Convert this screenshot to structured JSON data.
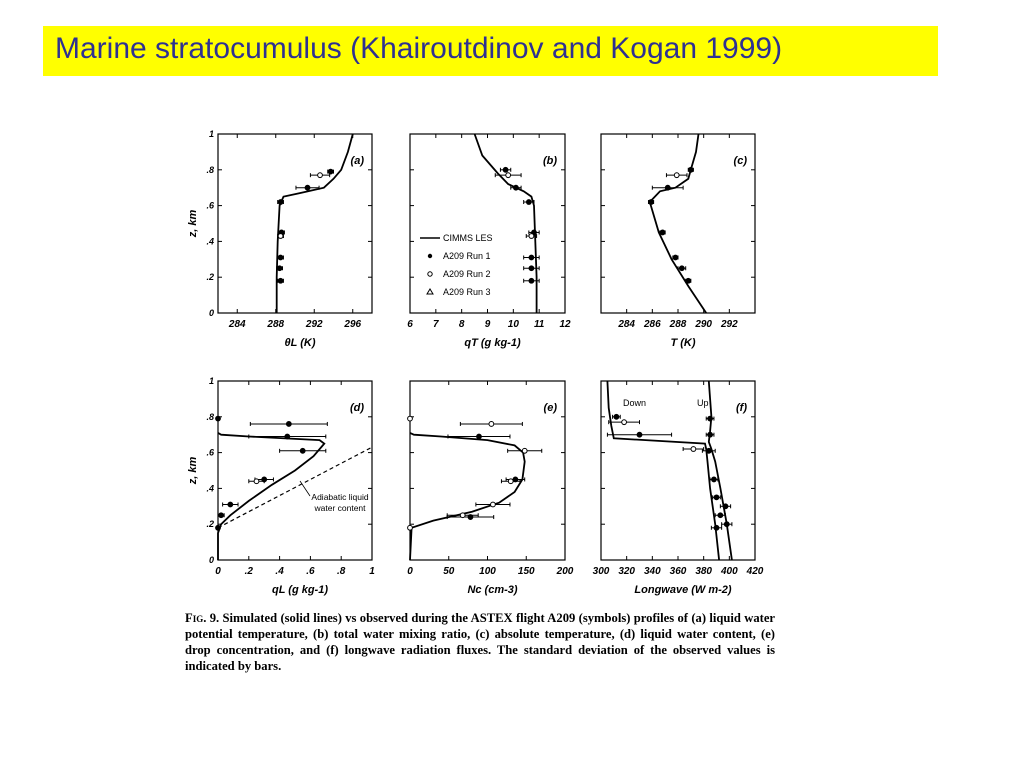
{
  "slide": {
    "title": "Marine stratocumulus (Khairoutdinov and Kogan 1999)",
    "title_bg_color": "#ffff00",
    "title_text_color": "#2e3192"
  },
  "caption": {
    "label": "Fig. 9.",
    "text": "Simulated (solid lines) vs observed during the ASTEX flight A209 (symbols) profiles of (a) liquid water potential temperature, (b) total water mixing ratio, (c) absolute temperature, (d) liquid water content, (e) drop concentration, and (f) longwave radiation fluxes. The standard deviation of the observed values is indicated by bars."
  },
  "legend": {
    "entries": [
      {
        "label": "CIMMS LES",
        "symbol": "line"
      },
      {
        "label": "A209  Run 1",
        "symbol": "filled-circle"
      },
      {
        "label": "A209  Run 2",
        "symbol": "open-circle"
      },
      {
        "label": "A209  Run 3",
        "symbol": "triangle"
      }
    ]
  },
  "chart_data": [
    {
      "panel": "(a)",
      "type": "line",
      "xlabel": "θL (K)",
      "ylabel": "z, km",
      "xlim": [
        282,
        298
      ],
      "ylim": [
        0,
        1
      ],
      "xticks": [
        284,
        288,
        292,
        296
      ],
      "yticks": [
        0,
        0.2,
        0.4,
        0.6,
        0.8,
        1
      ],
      "series": [
        {
          "kind": "line",
          "x": [
            288.1,
            288.1,
            288.2,
            288.4,
            288.8,
            290.5,
            293.0,
            294.0,
            294.8,
            295.5,
            296.0
          ],
          "y": [
            0,
            0.2,
            0.4,
            0.6,
            0.65,
            0.67,
            0.7,
            0.75,
            0.8,
            0.9,
            1.0
          ]
        },
        {
          "kind": "obs",
          "points": [
            {
              "x": 293.7,
              "y": 0.79,
              "err": 0.3,
              "sym": "filled"
            },
            {
              "x": 292.6,
              "y": 0.77,
              "err": 1.0,
              "sym": "open"
            },
            {
              "x": 291.3,
              "y": 0.7,
              "err": 1.2,
              "sym": "filled"
            },
            {
              "x": 288.5,
              "y": 0.62,
              "err": 0.3,
              "sym": "filled"
            },
            {
              "x": 288.6,
              "y": 0.45,
              "err": 0.3,
              "sym": "filled"
            },
            {
              "x": 288.5,
              "y": 0.43,
              "err": 0.3,
              "sym": "open"
            },
            {
              "x": 288.5,
              "y": 0.31,
              "err": 0.3,
              "sym": "filled"
            },
            {
              "x": 288.4,
              "y": 0.25,
              "err": 0.3,
              "sym": "filled"
            },
            {
              "x": 288.5,
              "y": 0.18,
              "err": 0.3,
              "sym": "filled"
            }
          ]
        }
      ]
    },
    {
      "panel": "(b)",
      "type": "line",
      "xlabel": "qT (g kg-1)",
      "ylabel": "",
      "xlim": [
        6,
        12
      ],
      "ylim": [
        0,
        1
      ],
      "xticks": [
        6,
        7,
        8,
        9,
        10,
        11,
        12
      ],
      "yticks": [],
      "series": [
        {
          "kind": "line",
          "x": [
            10.9,
            10.9,
            10.85,
            10.8,
            10.7,
            10.4,
            9.8,
            9.4,
            8.8,
            8.5
          ],
          "y": [
            0,
            0.2,
            0.4,
            0.6,
            0.65,
            0.68,
            0.72,
            0.78,
            0.88,
            1.0
          ]
        },
        {
          "kind": "obs",
          "points": [
            {
              "x": 9.7,
              "y": 0.8,
              "err": 0.2,
              "sym": "filled"
            },
            {
              "x": 9.8,
              "y": 0.77,
              "err": 0.5,
              "sym": "open"
            },
            {
              "x": 10.1,
              "y": 0.7,
              "err": 0.2,
              "sym": "filled"
            },
            {
              "x": 10.6,
              "y": 0.62,
              "err": 0.2,
              "sym": "filled"
            },
            {
              "x": 10.8,
              "y": 0.45,
              "err": 0.2,
              "sym": "filled"
            },
            {
              "x": 10.7,
              "y": 0.43,
              "err": 0.2,
              "sym": "open"
            },
            {
              "x": 10.7,
              "y": 0.31,
              "err": 0.3,
              "sym": "filled"
            },
            {
              "x": 10.7,
              "y": 0.25,
              "err": 0.3,
              "sym": "filled"
            },
            {
              "x": 10.7,
              "y": 0.18,
              "err": 0.3,
              "sym": "filled"
            }
          ]
        }
      ]
    },
    {
      "panel": "(c)",
      "type": "line",
      "xlabel": "T (K)",
      "ylabel": "",
      "xlim": [
        282,
        294
      ],
      "ylim": [
        0,
        1
      ],
      "xticks": [
        284,
        286,
        288,
        290,
        292
      ],
      "yticks": [],
      "series": [
        {
          "kind": "line",
          "x": [
            290.2,
            288.8,
            287.5,
            286.5,
            285.8,
            286.6,
            287.8,
            288.8,
            289.0,
            289.4,
            289.6
          ],
          "y": [
            0,
            0.15,
            0.3,
            0.45,
            0.62,
            0.68,
            0.7,
            0.75,
            0.8,
            0.9,
            1.0
          ]
        },
        {
          "kind": "obs",
          "points": [
            {
              "x": 289.0,
              "y": 0.8,
              "err": 0.2,
              "sym": "filled"
            },
            {
              "x": 287.9,
              "y": 0.77,
              "err": 0.8,
              "sym": "open"
            },
            {
              "x": 287.2,
              "y": 0.7,
              "err": 1.2,
              "sym": "filled"
            },
            {
              "x": 285.9,
              "y": 0.62,
              "err": 0.2,
              "sym": "filled"
            },
            {
              "x": 286.8,
              "y": 0.45,
              "err": 0.2,
              "sym": "filled"
            },
            {
              "x": 287.8,
              "y": 0.31,
              "err": 0.2,
              "sym": "filled"
            },
            {
              "x": 288.3,
              "y": 0.25,
              "err": 0.3,
              "sym": "filled"
            },
            {
              "x": 288.8,
              "y": 0.18,
              "err": 0.2,
              "sym": "filled"
            }
          ]
        }
      ]
    },
    {
      "panel": "(d)",
      "type": "line",
      "xlabel": "qL (g kg-1)",
      "ylabel": "z, km",
      "xlim": [
        0,
        1
      ],
      "ylim": [
        0,
        1
      ],
      "xticks": [
        0,
        0.2,
        0.4,
        0.6,
        0.8,
        1
      ],
      "yticks": [
        0,
        0.2,
        0.4,
        0.6,
        0.8,
        1
      ],
      "annotation": "Adiabatic liquid water content",
      "series": [
        {
          "kind": "line",
          "x": [
            0,
            0,
            0.02,
            0.08,
            0.2,
            0.35,
            0.5,
            0.62,
            0.69,
            0.66,
            0.2,
            0.02,
            0
          ],
          "y": [
            0,
            0.15,
            0.2,
            0.25,
            0.33,
            0.42,
            0.5,
            0.58,
            0.65,
            0.67,
            0.69,
            0.7,
            0.71
          ]
        },
        {
          "kind": "dashed",
          "x": [
            0,
            1
          ],
          "y": [
            0.18,
            0.63
          ]
        },
        {
          "kind": "obs",
          "points": [
            {
              "x": 0.46,
              "y": 0.76,
              "err": 0.25,
              "sym": "filled"
            },
            {
              "x": 0.45,
              "y": 0.69,
              "err": 0.25,
              "sym": "filled"
            },
            {
              "x": 0.55,
              "y": 0.61,
              "err": 0.15,
              "sym": "filled"
            },
            {
              "x": 0.3,
              "y": 0.45,
              "err": 0.06,
              "sym": "filled"
            },
            {
              "x": 0.25,
              "y": 0.44,
              "err": 0.05,
              "sym": "open"
            },
            {
              "x": 0.08,
              "y": 0.31,
              "err": 0.05,
              "sym": "filled"
            },
            {
              "x": 0.02,
              "y": 0.25,
              "err": 0.02,
              "sym": "filled"
            },
            {
              "x": 0.0,
              "y": 0.18,
              "err": 0.0,
              "sym": "filled"
            },
            {
              "x": 0.0,
              "y": 0.79,
              "err": 0.0,
              "sym": "filled"
            }
          ]
        }
      ]
    },
    {
      "panel": "(e)",
      "type": "line",
      "xlabel": "Nc (cm-3)",
      "ylabel": "",
      "xlim": [
        0,
        200
      ],
      "ylim": [
        0,
        1
      ],
      "xticks": [
        0,
        50,
        100,
        150,
        200
      ],
      "yticks": [],
      "series": [
        {
          "kind": "line",
          "x": [
            0,
            2,
            30,
            80,
            115,
            135,
            145,
            148,
            146,
            135,
            100,
            40,
            5,
            0
          ],
          "y": [
            0,
            0.18,
            0.22,
            0.27,
            0.32,
            0.38,
            0.45,
            0.55,
            0.6,
            0.64,
            0.67,
            0.69,
            0.7,
            0.71
          ]
        },
        {
          "kind": "obs",
          "points": [
            {
              "x": 105,
              "y": 0.76,
              "err": 40,
              "sym": "open"
            },
            {
              "x": 89,
              "y": 0.69,
              "err": 40,
              "sym": "filled"
            },
            {
              "x": 148,
              "y": 0.61,
              "err": 22,
              "sym": "open"
            },
            {
              "x": 136,
              "y": 0.45,
              "err": 12,
              "sym": "filled"
            },
            {
              "x": 130,
              "y": 0.44,
              "err": 12,
              "sym": "open"
            },
            {
              "x": 107,
              "y": 0.31,
              "err": 22,
              "sym": "open"
            },
            {
              "x": 78,
              "y": 0.24,
              "err": 30,
              "sym": "filled"
            },
            {
              "x": 68,
              "y": 0.25,
              "err": 20,
              "sym": "open"
            },
            {
              "x": 0,
              "y": 0.79,
              "err": 0,
              "sym": "open"
            },
            {
              "x": 0,
              "y": 0.18,
              "err": 0,
              "sym": "open"
            }
          ]
        }
      ]
    },
    {
      "panel": "(f)",
      "type": "line",
      "xlabel": "Longwave (W m-2)",
      "ylabel": "",
      "xlim": [
        300,
        420
      ],
      "ylim": [
        0,
        1
      ],
      "xticks": [
        300,
        320,
        340,
        360,
        380,
        400,
        420
      ],
      "yticks": [],
      "annotations": [
        "Down",
        "Up"
      ],
      "series": [
        {
          "kind": "line",
          "name": "Down",
          "x": [
            392,
            389,
            385,
            383,
            382,
            381,
            310,
            308,
            306,
            305
          ],
          "y": [
            0,
            0.2,
            0.4,
            0.55,
            0.62,
            0.65,
            0.68,
            0.75,
            0.85,
            1.0
          ]
        },
        {
          "kind": "line",
          "name": "Up",
          "x": [
            402,
            398,
            393,
            389,
            386,
            384,
            385,
            386,
            385,
            384
          ],
          "y": [
            0,
            0.2,
            0.4,
            0.55,
            0.62,
            0.66,
            0.72,
            0.8,
            0.9,
            1.0
          ]
        },
        {
          "kind": "obs",
          "points": [
            {
              "x": 312,
              "y": 0.8,
              "err": 3,
              "sym": "filled"
            },
            {
              "x": 318,
              "y": 0.77,
              "err": 12,
              "sym": "open"
            },
            {
              "x": 330,
              "y": 0.7,
              "err": 25,
              "sym": "filled"
            },
            {
              "x": 385,
              "y": 0.79,
              "err": 3,
              "sym": "filled"
            },
            {
              "x": 385,
              "y": 0.7,
              "err": 3,
              "sym": "filled"
            },
            {
              "x": 372,
              "y": 0.62,
              "err": 8,
              "sym": "open"
            },
            {
              "x": 384,
              "y": 0.61,
              "err": 5,
              "sym": "filled"
            },
            {
              "x": 388,
              "y": 0.45,
              "err": 3,
              "sym": "filled"
            },
            {
              "x": 390,
              "y": 0.35,
              "err": 3,
              "sym": "filled"
            },
            {
              "x": 397,
              "y": 0.3,
              "err": 4,
              "sym": "filled"
            },
            {
              "x": 393,
              "y": 0.25,
              "err": 4,
              "sym": "filled"
            },
            {
              "x": 398,
              "y": 0.2,
              "err": 4,
              "sym": "filled"
            },
            {
              "x": 390,
              "y": 0.18,
              "err": 4,
              "sym": "filled"
            }
          ]
        }
      ]
    }
  ]
}
